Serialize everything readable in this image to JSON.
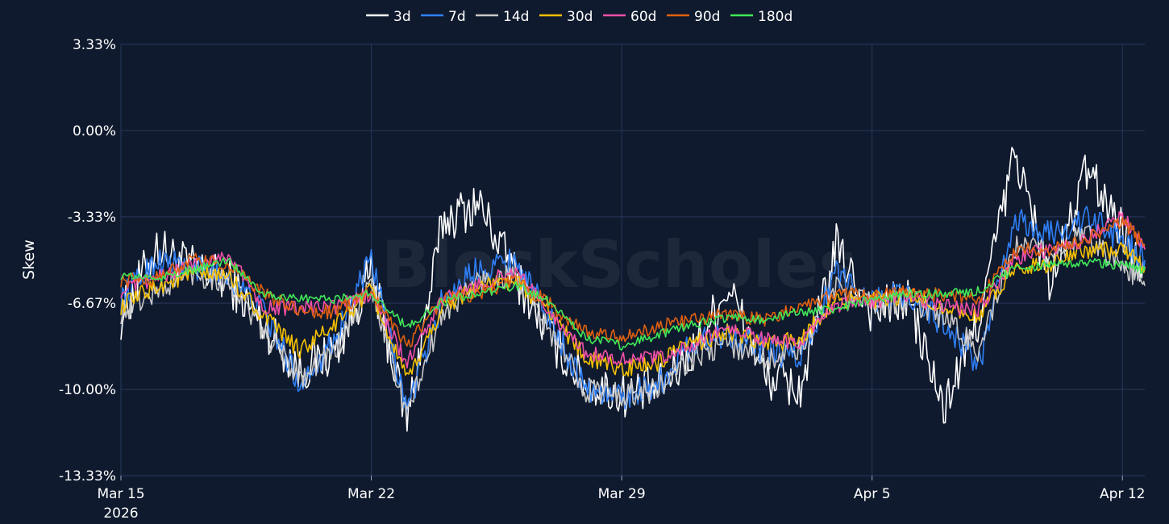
{
  "chart_data": {
    "type": "line",
    "ylabel": "Skew",
    "xlabel": "",
    "watermark": "BlockScholes",
    "ylim": [
      -13.33,
      3.33
    ],
    "y_ticks": [
      {
        "value": 3.33,
        "label": "3.33%"
      },
      {
        "value": 0.0,
        "label": "0.00%"
      },
      {
        "value": -3.33,
        "label": "-3.33%"
      },
      {
        "value": -6.67,
        "label": "-6.67%"
      },
      {
        "value": -10.0,
        "label": "-10.00%"
      },
      {
        "value": -13.33,
        "label": "-13.33%"
      }
    ],
    "x_range": [
      "2026-03-15",
      "2026-04-12T15:00"
    ],
    "x_ticks": [
      {
        "value": "2026-03-15",
        "label": "Mar 15",
        "sublabel": "2026"
      },
      {
        "value": "2026-03-22",
        "label": "Mar 22"
      },
      {
        "value": "2026-03-29",
        "label": "Mar 29"
      },
      {
        "value": "2026-04-05",
        "label": "Apr 5"
      },
      {
        "value": "2026-04-12",
        "label": "Apr 12"
      }
    ],
    "grid": true,
    "legend_position": "top-center",
    "x": [
      "2026-03-15",
      "2026-03-16",
      "2026-03-17",
      "2026-03-18",
      "2026-03-19",
      "2026-03-20",
      "2026-03-21",
      "2026-03-22",
      "2026-03-23",
      "2026-03-24",
      "2026-03-25",
      "2026-03-26",
      "2026-03-27",
      "2026-03-28",
      "2026-03-29",
      "2026-03-30",
      "2026-03-31",
      "2026-04-01",
      "2026-04-02",
      "2026-04-03",
      "2026-04-04",
      "2026-04-05",
      "2026-04-06",
      "2026-04-07",
      "2026-04-08",
      "2026-04-09",
      "2026-04-10",
      "2026-04-11",
      "2026-04-12",
      "2026-04-12T15:00"
    ],
    "series": [
      {
        "name": "3d",
        "color": "#ffffff",
        "amp": 0.9,
        "values": [
          -7.2,
          -4.5,
          -5.3,
          -5.8,
          -7.5,
          -9.3,
          -8.5,
          -5.5,
          -11.2,
          -3.5,
          -2.8,
          -5.5,
          -8.0,
          -9.8,
          -10.2,
          -10.0,
          -8.5,
          -6.0,
          -9.5,
          -10.0,
          -4.5,
          -7.0,
          -6.5,
          -10.8,
          -7.2,
          -0.8,
          -6.0,
          -1.5,
          -3.8,
          -5.3
        ]
      },
      {
        "name": "7d",
        "color": "#2f7ff5",
        "amp": 0.55,
        "values": [
          -6.5,
          -5.0,
          -5.3,
          -5.6,
          -7.0,
          -9.8,
          -8.0,
          -5.0,
          -10.8,
          -6.5,
          -5.3,
          -5.0,
          -7.3,
          -10.0,
          -10.3,
          -9.8,
          -8.2,
          -7.8,
          -8.5,
          -8.8,
          -5.5,
          -6.5,
          -6.3,
          -7.5,
          -9.0,
          -3.5,
          -4.0,
          -3.4,
          -4.2,
          -5.0
        ]
      },
      {
        "name": "14d",
        "color": "#c8c8c8",
        "amp": 0.5,
        "values": [
          -7.0,
          -6.2,
          -5.5,
          -5.8,
          -7.8,
          -9.5,
          -8.5,
          -6.0,
          -11.0,
          -7.0,
          -5.8,
          -5.6,
          -7.8,
          -10.0,
          -10.2,
          -10.0,
          -8.8,
          -8.2,
          -8.8,
          -8.5,
          -6.0,
          -6.8,
          -6.5,
          -7.2,
          -8.5,
          -4.5,
          -4.8,
          -4.0,
          -5.2,
          -6.0
        ]
      },
      {
        "name": "30d",
        "color": "#f5c000",
        "amp": 0.35,
        "values": [
          -6.8,
          -6.0,
          -5.6,
          -5.6,
          -7.2,
          -8.5,
          -7.5,
          -6.2,
          -9.7,
          -6.8,
          -6.0,
          -5.8,
          -7.0,
          -8.8,
          -9.2,
          -9.0,
          -8.2,
          -7.8,
          -8.3,
          -8.0,
          -6.5,
          -6.6,
          -6.4,
          -6.8,
          -7.2,
          -5.2,
          -5.2,
          -4.6,
          -4.6,
          -5.3
        ]
      },
      {
        "name": "60d",
        "color": "#f050a8",
        "amp": 0.3,
        "values": [
          -6.2,
          -5.7,
          -5.2,
          -4.8,
          -6.8,
          -6.9,
          -6.8,
          -6.3,
          -9.0,
          -6.5,
          -6.0,
          -5.4,
          -7.0,
          -8.6,
          -8.8,
          -8.8,
          -8.3,
          -7.6,
          -8.1,
          -8.2,
          -6.8,
          -6.6,
          -6.4,
          -6.8,
          -6.9,
          -4.9,
          -4.6,
          -4.2,
          -3.3,
          -4.6
        ]
      },
      {
        "name": "90d",
        "color": "#e06010",
        "amp": 0.28,
        "values": [
          -5.8,
          -5.7,
          -5.0,
          -5.2,
          -6.3,
          -7.0,
          -7.0,
          -6.2,
          -8.3,
          -6.5,
          -6.3,
          -5.8,
          -6.7,
          -7.8,
          -8.0,
          -7.6,
          -7.3,
          -7.1,
          -7.3,
          -6.8,
          -6.3,
          -6.4,
          -6.2,
          -6.4,
          -6.5,
          -4.6,
          -4.6,
          -4.2,
          -3.5,
          -4.4
        ]
      },
      {
        "name": "180d",
        "color": "#40e858",
        "amp": 0.18,
        "values": [
          -5.6,
          -5.7,
          -5.4,
          -5.0,
          -6.3,
          -6.5,
          -6.5,
          -6.3,
          -7.6,
          -6.6,
          -6.3,
          -6.0,
          -6.6,
          -8.0,
          -8.3,
          -7.9,
          -7.5,
          -7.2,
          -7.3,
          -7.0,
          -6.9,
          -6.5,
          -6.3,
          -6.3,
          -6.2,
          -5.3,
          -5.2,
          -5.1,
          -5.2,
          -5.4
        ]
      }
    ]
  }
}
